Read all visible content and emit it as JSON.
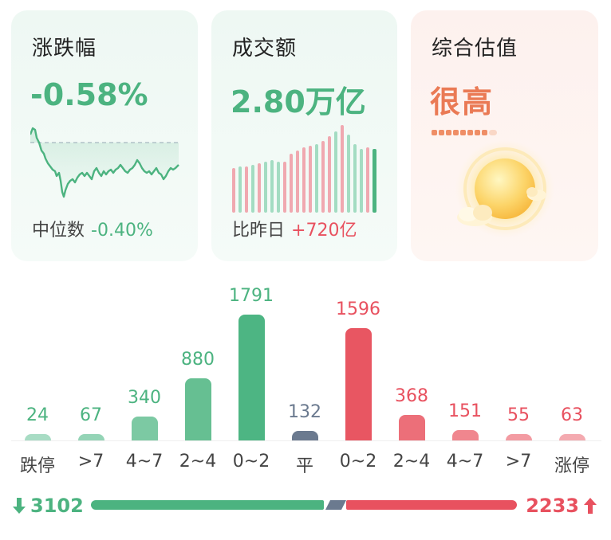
{
  "cards": {
    "change": {
      "title": "涨跌幅",
      "value": "-0.58%",
      "median_label": "中位数",
      "median_value": "-0.40%"
    },
    "turnover": {
      "title": "成交额",
      "value": "2.80万亿",
      "compare_label": "比昨日",
      "compare_value": "+720亿"
    },
    "valuation": {
      "title": "综合估值",
      "value": "很高",
      "icon": "sun-icon"
    }
  },
  "distribution": {
    "buckets": [
      {
        "label": "跌停",
        "count": "24",
        "value": 24,
        "color": "#a8dcc4"
      },
      {
        "label": ">7",
        "count": "67",
        "value": 67,
        "color": "#94d4b6"
      },
      {
        "label": "4~7",
        "count": "340",
        "value": 340,
        "color": "#7cc9a3"
      },
      {
        "label": "2~4",
        "count": "880",
        "value": 880,
        "color": "#66bf92"
      },
      {
        "label": "0~2",
        "count": "1791",
        "value": 1791,
        "color": "#4db583"
      },
      {
        "label": "平",
        "count": "132",
        "value": 132,
        "color": "#6b7a8f"
      },
      {
        "label": "0~2",
        "count": "1596",
        "value": 1596,
        "color": "#e85662"
      },
      {
        "label": "2~4",
        "count": "368",
        "value": 368,
        "color": "#ec6f79"
      },
      {
        "label": "4~7",
        "count": "151",
        "value": 151,
        "color": "#f0868e"
      },
      {
        "label": ">7",
        "count": "55",
        "value": 55,
        "color": "#f39ba2"
      },
      {
        "label": "涨停",
        "count": "63",
        "value": 63,
        "color": "#f4aab0"
      }
    ],
    "count_colors": {
      "down": "#4cb380",
      "flat": "#6b7a8f",
      "up": "#e8515f"
    }
  },
  "summary": {
    "down_total": "3102",
    "up_total": "2233",
    "down_icon": "arrow-down-icon",
    "up_icon": "arrow-up-icon"
  },
  "colors": {
    "green": "#4cb380",
    "red": "#e8515f",
    "orange": "#ea7a55",
    "neutral": "#6b7a8f"
  }
}
